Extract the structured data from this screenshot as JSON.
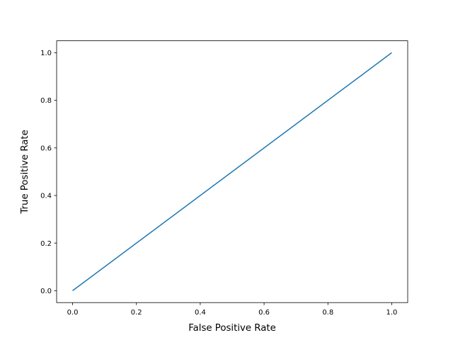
{
  "chart_data": {
    "type": "line",
    "title": "",
    "xlabel": "False Positive Rate",
    "ylabel": "True Positive Rate",
    "xlim": [
      -0.05,
      1.05
    ],
    "ylim": [
      -0.05,
      1.05
    ],
    "grid": false,
    "xticks": [
      "0.0",
      "0.2",
      "0.4",
      "0.6",
      "0.8",
      "1.0"
    ],
    "yticks": [
      "0.0",
      "0.2",
      "0.4",
      "0.6",
      "0.8",
      "1.0"
    ],
    "series": [
      {
        "x": [
          0.0,
          1.0
        ],
        "y": [
          0.0,
          1.0
        ],
        "color": "#1f77b4"
      }
    ]
  }
}
